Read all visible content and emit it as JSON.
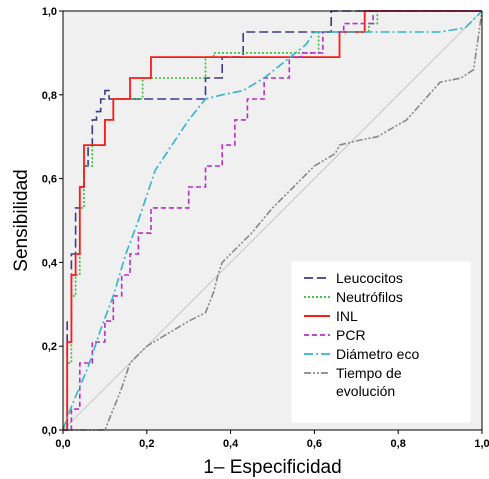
{
  "chart_data": {
    "type": "line",
    "xlabel": "1– Especificidad",
    "ylabel": "Sensibilidad",
    "xlim": [
      0,
      1
    ],
    "ylim": [
      0,
      1
    ],
    "x_ticks": [
      "0,0",
      "0,2",
      "0,4",
      "0,6",
      "0,8",
      "1,0"
    ],
    "y_ticks": [
      "0,0",
      "0,2",
      "0,4",
      "0,6",
      "0,8",
      "1,0"
    ],
    "grid": false,
    "legend_position": "bottom-right",
    "colors": {
      "plot_background": "#f0f0f0",
      "axis": "#000000"
    },
    "series": [
      {
        "name": "Leucocitos",
        "color": "#3a3a8c",
        "dash": "long-dash",
        "x": [
          0,
          0.01,
          0.01,
          0.02,
          0.02,
          0.03,
          0.03,
          0.04,
          0.04,
          0.05,
          0.05,
          0.06,
          0.06,
          0.07,
          0.07,
          0.08,
          0.08,
          0.09,
          0.09,
          0.1,
          0.1,
          0.11,
          0.11,
          0.34,
          0.34,
          0.38,
          0.38,
          0.43,
          0.43,
          0.64,
          0.64,
          1.0,
          1.0
        ],
        "y": [
          0,
          0,
          0.26,
          0.26,
          0.42,
          0.42,
          0.53,
          0.53,
          0.58,
          0.58,
          0.63,
          0.63,
          0.68,
          0.68,
          0.74,
          0.74,
          0.76,
          0.76,
          0.79,
          0.79,
          0.81,
          0.81,
          0.79,
          0.79,
          0.84,
          0.84,
          0.89,
          0.89,
          0.95,
          0.95,
          1.0,
          1.0,
          1.0
        ]
      },
      {
        "name": "Neutrófilos",
        "color": "#33bb33",
        "dash": "dot",
        "x": [
          0,
          0.01,
          0.01,
          0.02,
          0.02,
          0.03,
          0.03,
          0.04,
          0.04,
          0.05,
          0.05,
          0.07,
          0.07,
          0.1,
          0.1,
          0.12,
          0.12,
          0.19,
          0.19,
          0.34,
          0.34,
          0.36,
          0.36,
          0.61,
          0.61,
          0.73,
          0.73,
          0.75,
          0.75,
          1.0,
          1.0
        ],
        "y": [
          0,
          0,
          0.16,
          0.16,
          0.32,
          0.32,
          0.37,
          0.37,
          0.53,
          0.53,
          0.63,
          0.63,
          0.68,
          0.68,
          0.74,
          0.74,
          0.79,
          0.79,
          0.84,
          0.84,
          0.89,
          0.89,
          0.9,
          0.9,
          0.95,
          0.95,
          0.97,
          0.97,
          1.0,
          1.0,
          1.0
        ]
      },
      {
        "name": "INL",
        "color": "#ff1a1a",
        "dash": "solid",
        "x": [
          0,
          0.01,
          0.01,
          0.02,
          0.02,
          0.03,
          0.03,
          0.04,
          0.04,
          0.05,
          0.05,
          0.1,
          0.1,
          0.12,
          0.12,
          0.16,
          0.16,
          0.21,
          0.21,
          0.66,
          0.66,
          0.72,
          0.72,
          1.0,
          1.0
        ],
        "y": [
          0,
          0,
          0.21,
          0.21,
          0.37,
          0.37,
          0.42,
          0.42,
          0.58,
          0.58,
          0.68,
          0.68,
          0.74,
          0.74,
          0.79,
          0.79,
          0.84,
          0.84,
          0.89,
          0.89,
          0.95,
          0.95,
          1.0,
          1.0,
          1.0
        ]
      },
      {
        "name": "PCR",
        "color": "#b92ec9",
        "dash": "dash",
        "x": [
          0,
          0.02,
          0.02,
          0.04,
          0.04,
          0.07,
          0.07,
          0.1,
          0.1,
          0.12,
          0.12,
          0.14,
          0.14,
          0.16,
          0.16,
          0.18,
          0.18,
          0.21,
          0.21,
          0.3,
          0.3,
          0.34,
          0.34,
          0.38,
          0.38,
          0.41,
          0.41,
          0.44,
          0.44,
          0.48,
          0.48,
          0.54,
          0.54,
          0.57,
          0.57,
          0.62,
          0.62,
          0.67,
          0.67,
          0.74,
          0.74,
          0.86,
          0.86,
          0.9,
          0.9,
          1.0,
          1.0
        ],
        "y": [
          0,
          0,
          0.05,
          0.05,
          0.16,
          0.16,
          0.21,
          0.21,
          0.26,
          0.26,
          0.32,
          0.32,
          0.37,
          0.37,
          0.42,
          0.42,
          0.47,
          0.47,
          0.53,
          0.53,
          0.58,
          0.58,
          0.63,
          0.63,
          0.68,
          0.68,
          0.74,
          0.74,
          0.79,
          0.79,
          0.84,
          0.84,
          0.89,
          0.89,
          0.9,
          0.9,
          0.95,
          0.95,
          0.97,
          0.97,
          1.0,
          1.0,
          1.0,
          1.0,
          1.0,
          1.0,
          1.0
        ]
      },
      {
        "name": "Diámetro eco",
        "color": "#33b5c9",
        "dash": "dash-dot",
        "x": [
          0,
          0.01,
          0.03,
          0.06,
          0.09,
          0.12,
          0.15,
          0.18,
          0.2,
          0.22,
          0.26,
          0.3,
          0.34,
          0.38,
          0.43,
          0.48,
          0.53,
          0.58,
          0.6,
          0.65,
          0.7,
          0.75,
          0.82,
          0.9,
          0.96,
          1.0,
          1.0
        ],
        "y": [
          0,
          0.03,
          0.08,
          0.15,
          0.24,
          0.32,
          0.42,
          0.5,
          0.56,
          0.62,
          0.68,
          0.74,
          0.79,
          0.8,
          0.81,
          0.84,
          0.88,
          0.92,
          0.95,
          0.95,
          0.95,
          0.95,
          0.95,
          0.95,
          0.96,
          1.0,
          1.0
        ]
      },
      {
        "name": "Tiempo de evolución",
        "color": "#888888",
        "dash": "dash-dot-dot",
        "x": [
          0,
          0.1,
          0.12,
          0.14,
          0.16,
          0.2,
          0.25,
          0.3,
          0.34,
          0.36,
          0.37,
          0.38,
          0.4,
          0.45,
          0.5,
          0.55,
          0.6,
          0.65,
          0.66,
          0.7,
          0.75,
          0.82,
          0.9,
          0.95,
          0.98,
          1.0
        ],
        "y": [
          0,
          0,
          0.05,
          0.1,
          0.16,
          0.2,
          0.23,
          0.26,
          0.28,
          0.33,
          0.37,
          0.4,
          0.42,
          0.47,
          0.53,
          0.58,
          0.63,
          0.66,
          0.68,
          0.69,
          0.7,
          0.74,
          0.83,
          0.84,
          0.86,
          1.0
        ]
      }
    ],
    "legend": {
      "entries": [
        "Leucocitos",
        "Neutrófilos",
        "INL",
        "PCR",
        "Diámetro eco",
        "Tiempo de evolución"
      ],
      "entry_lines": [
        [
          "Leucocitos"
        ],
        [
          "Neutrófilos"
        ],
        [
          "INL"
        ],
        [
          "PCR"
        ],
        [
          "Diámetro eco"
        ],
        [
          "Tiempo de",
          "evolución"
        ]
      ]
    }
  }
}
